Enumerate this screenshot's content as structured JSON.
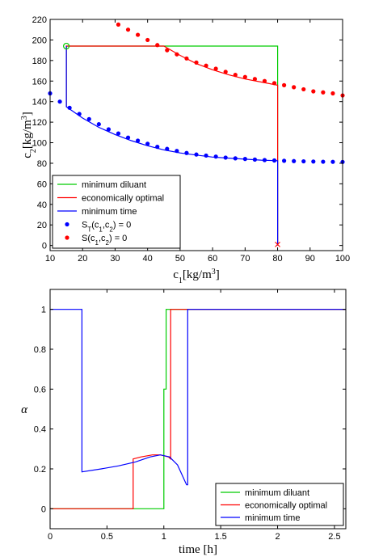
{
  "chart_data": [
    {
      "type": "line",
      "xlabel": "c1 [kg/m3]",
      "ylabel": "c2 [kg/m3]",
      "xlim": [
        10,
        100
      ],
      "ylim": [
        -5,
        220
      ],
      "xticks": [
        "10",
        "20",
        "30",
        "40",
        "50",
        "60",
        "70",
        "80",
        "90",
        "100"
      ],
      "yticks": [
        "0",
        "20",
        "40",
        "60",
        "80",
        "100",
        "120",
        "140",
        "160",
        "180",
        "200",
        "220"
      ],
      "legend_position": "bottom-left",
      "legend": [
        "minimum diluant",
        "economically optimal",
        "minimum time",
        "S_T(c_1,c_2) = 0",
        "S(c_1,c_2) = 0"
      ],
      "colors": {
        "green": "#00cc00",
        "red": "#ff0000",
        "blue": "#0000ff"
      },
      "series": [
        {
          "kind": "line",
          "color": "#00cc00",
          "x": [
            15,
            15,
            80,
            80
          ],
          "y": [
            135,
            194,
            194,
            0
          ]
        },
        {
          "kind": "line",
          "color": "#ff0000",
          "x": [
            15,
            15,
            45,
            50,
            55,
            60,
            65,
            70,
            75,
            80,
            80
          ],
          "y": [
            135,
            194,
            194,
            185,
            177,
            171,
            166,
            162,
            159,
            156,
            0
          ]
        },
        {
          "kind": "line",
          "color": "#0000ff",
          "x": [
            15,
            15,
            20,
            25,
            30,
            35,
            40,
            45,
            50,
            55,
            60,
            65,
            70,
            75,
            80,
            80
          ],
          "y": [
            194,
            135,
            124,
            115,
            108,
            102,
            97,
            93,
            90,
            88,
            86,
            85,
            84,
            83,
            82.5,
            0
          ]
        },
        {
          "kind": "markers",
          "color": "#0000ff",
          "x": [
            10,
            13,
            16,
            19,
            22,
            25,
            28,
            31,
            34,
            37,
            40,
            43,
            46,
            49,
            52,
            55,
            58,
            61,
            64,
            67,
            70,
            73,
            76,
            79,
            82,
            85,
            88,
            91,
            94,
            97,
            100
          ],
          "y": [
            148,
            140,
            134,
            128,
            123,
            118,
            113,
            109,
            105,
            102,
            99,
            96,
            94,
            92,
            90,
            88.5,
            87.5,
            86.5,
            85.5,
            84.8,
            84.2,
            83.6,
            83.1,
            82.7,
            82.4,
            82.1,
            81.9,
            81.7,
            81.5,
            81.4,
            81.3
          ]
        },
        {
          "kind": "markers",
          "color": "#ff0000",
          "x": [
            31,
            34,
            37,
            40,
            43,
            46,
            49,
            52,
            55,
            58,
            61,
            64,
            67,
            70,
            73,
            76,
            79,
            82,
            85,
            88,
            91,
            94,
            97,
            100
          ],
          "y": [
            215,
            210,
            205,
            200,
            195,
            190,
            186,
            182,
            178,
            175,
            172,
            169,
            166,
            164,
            162,
            160,
            158,
            156,
            154,
            152,
            150,
            149,
            148,
            146
          ]
        }
      ],
      "markers": [
        {
          "shape": "circle",
          "color": "#00cc00",
          "x": 15,
          "y": 194
        },
        {
          "shape": "cross",
          "color": "#ff0000",
          "x": 80,
          "y": 1
        }
      ]
    },
    {
      "type": "line",
      "xlabel": "time [h]",
      "ylabel": "α",
      "xlim": [
        0,
        2.6
      ],
      "ylim": [
        -0.1,
        1.1
      ],
      "xticks": [
        "0",
        "0.5",
        "1",
        "1.5",
        "2",
        "2.5"
      ],
      "yticks": [
        "0",
        "0.2",
        "0.4",
        "0.6",
        "0.8",
        "1"
      ],
      "legend_position": "bottom-right",
      "legend": [
        "minimum diluant",
        "economically optimal",
        "minimum time"
      ],
      "series": [
        {
          "name": "minimum diluant",
          "color": "#00cc00",
          "x": [
            0,
            1.0,
            1.0,
            1.02,
            1.02,
            2.6
          ],
          "y": [
            0,
            0,
            0.6,
            0.6,
            1,
            1
          ]
        },
        {
          "name": "economically optimal",
          "color": "#ff0000",
          "x": [
            0,
            0.73,
            0.73,
            0.8,
            0.9,
            0.97,
            1.04,
            1.06,
            1.06,
            2.6
          ],
          "y": [
            0,
            0,
            0.25,
            0.26,
            0.27,
            0.27,
            0.26,
            0.25,
            1,
            1
          ]
        },
        {
          "name": "minimum time",
          "color": "#0000ff",
          "x": [
            0,
            0.28,
            0.28,
            0.45,
            0.6,
            0.75,
            0.88,
            0.97,
            1.05,
            1.12,
            1.2,
            1.21,
            1.21,
            2.6
          ],
          "y": [
            1,
            1,
            0.185,
            0.2,
            0.215,
            0.235,
            0.26,
            0.27,
            0.26,
            0.22,
            0.12,
            0.12,
            1,
            1
          ]
        }
      ]
    }
  ]
}
